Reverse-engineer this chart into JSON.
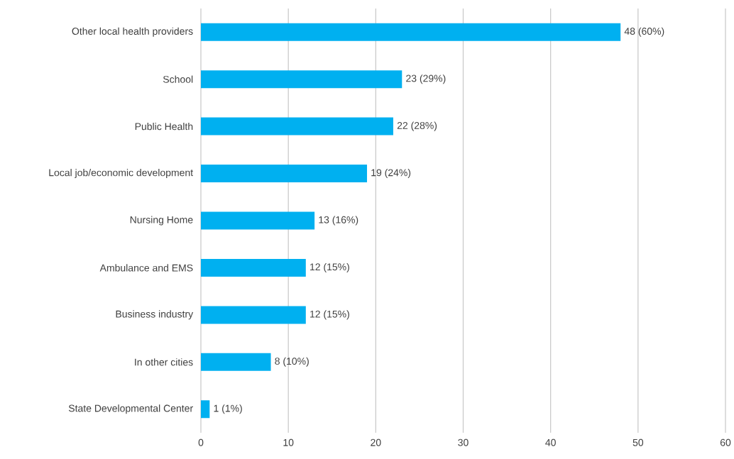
{
  "chart_data": {
    "type": "bar",
    "orientation": "horizontal",
    "categories": [
      "Other local health providers",
      "School",
      "Public Health",
      "Local job/economic development",
      "Nursing Home",
      "Ambulance and EMS",
      "Business industry",
      "In other cities",
      "State Developmental Center"
    ],
    "values": [
      48,
      23,
      22,
      19,
      13,
      12,
      12,
      8,
      1
    ],
    "value_labels": [
      "48 (60%)",
      "23 (29%)",
      "22 (28%)",
      "19 (24%)",
      "13 (16%)",
      "12 (15%)",
      "12 (15%)",
      "8 (10%)",
      "1 (1%)"
    ],
    "color": "#00b0f0",
    "xlim": [
      0,
      60
    ],
    "xticks": [
      0,
      10,
      20,
      30,
      40,
      50,
      60
    ],
    "grid": "x"
  }
}
